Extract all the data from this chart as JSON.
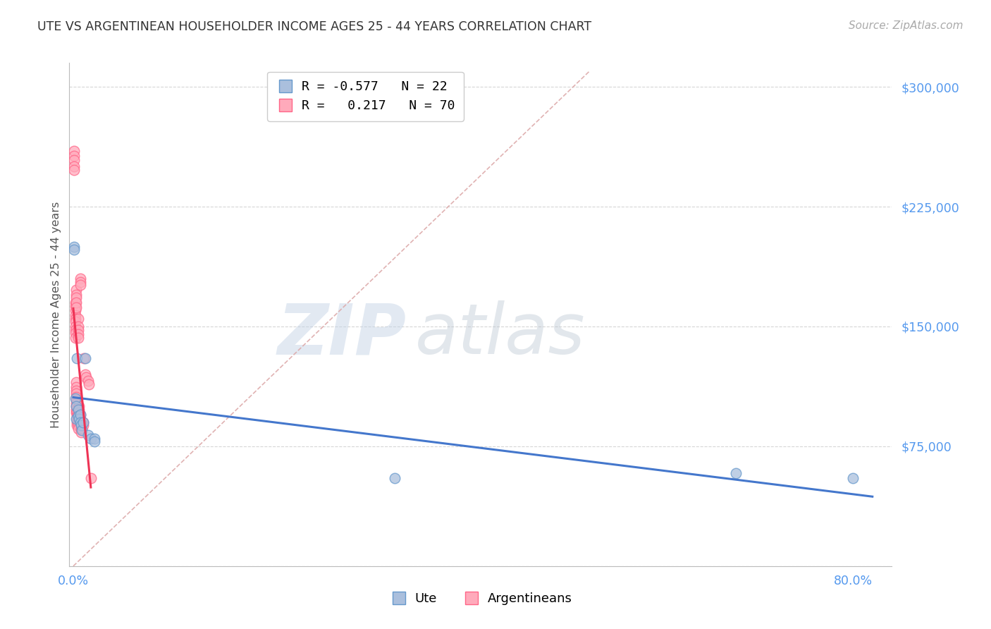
{
  "title": "UTE VS ARGENTINEAN HOUSEHOLDER INCOME AGES 25 - 44 YEARS CORRELATION CHART",
  "source": "Source: ZipAtlas.com",
  "ylabel": "Householder Income Ages 25 - 44 years",
  "yticks": [
    0,
    75000,
    150000,
    225000,
    300000
  ],
  "ytick_labels": [
    "",
    "$75,000",
    "$150,000",
    "$225,000",
    "$300,000"
  ],
  "ylim": [
    0,
    315000
  ],
  "xlim": [
    -0.004,
    0.84
  ],
  "xtick_vals": [
    0.0,
    0.1,
    0.2,
    0.3,
    0.4,
    0.5,
    0.6,
    0.7,
    0.8
  ],
  "xtick_labels": [
    "0.0%",
    "",
    "",
    "",
    "",
    "",
    "",
    "",
    "80.0%"
  ],
  "ute_R": -0.577,
  "ute_N": 22,
  "arg_R": 0.217,
  "arg_N": 70,
  "ute_scatter_color": "#aabfdd",
  "arg_scatter_color": "#ffaabb",
  "ute_edge_color": "#6699cc",
  "arg_edge_color": "#ff6688",
  "ute_line_color": "#4477cc",
  "arg_line_color": "#ee3355",
  "ref_line_color": "#ddaaaa",
  "grid_color": "#cccccc",
  "title_color": "#333333",
  "source_color": "#aaaaaa",
  "ylabel_color": "#555555",
  "ytick_color": "#5599ee",
  "xtick_color": "#5599ee",
  "legend_ute_label": "Ute",
  "legend_arg_label": "Argentineans",
  "ute_x": [
    0.001,
    0.001,
    0.002,
    0.003,
    0.003,
    0.004,
    0.005,
    0.005,
    0.006,
    0.007,
    0.007,
    0.008,
    0.009,
    0.01,
    0.012,
    0.015,
    0.018,
    0.022,
    0.022,
    0.33,
    0.68,
    0.8
  ],
  "ute_y": [
    200000,
    198000,
    105000,
    100000,
    92000,
    130000,
    98000,
    94000,
    92000,
    95000,
    90000,
    88000,
    85000,
    90000,
    130000,
    82000,
    80000,
    80000,
    78000,
    55000,
    58000,
    55000
  ],
  "arg_x": [
    0.001,
    0.001,
    0.001,
    0.001,
    0.001,
    0.002,
    0.002,
    0.002,
    0.002,
    0.002,
    0.002,
    0.002,
    0.002,
    0.002,
    0.002,
    0.003,
    0.003,
    0.003,
    0.003,
    0.003,
    0.003,
    0.003,
    0.003,
    0.003,
    0.003,
    0.003,
    0.003,
    0.003,
    0.003,
    0.003,
    0.004,
    0.004,
    0.004,
    0.004,
    0.004,
    0.005,
    0.005,
    0.005,
    0.005,
    0.005,
    0.005,
    0.005,
    0.005,
    0.005,
    0.005,
    0.006,
    0.006,
    0.006,
    0.006,
    0.006,
    0.007,
    0.007,
    0.007,
    0.007,
    0.007,
    0.008,
    0.008,
    0.008,
    0.008,
    0.009,
    0.009,
    0.009,
    0.01,
    0.01,
    0.011,
    0.012,
    0.013,
    0.015,
    0.016,
    0.018
  ],
  "arg_y": [
    260000,
    257000,
    254000,
    250000,
    248000,
    165000,
    163000,
    160000,
    157000,
    155000,
    153000,
    150000,
    148000,
    146000,
    143000,
    173000,
    170000,
    168000,
    165000,
    162000,
    115000,
    112000,
    110000,
    108000,
    106000,
    104000,
    102000,
    100000,
    98000,
    96000,
    96000,
    94000,
    92000,
    90000,
    88000,
    155000,
    150000,
    148000,
    145000,
    143000,
    95000,
    92000,
    90000,
    88000,
    86000,
    100000,
    98000,
    96000,
    94000,
    92000,
    180000,
    178000,
    176000,
    95000,
    92000,
    90000,
    88000,
    86000,
    84000,
    90000,
    88000,
    86000,
    90000,
    88000,
    130000,
    120000,
    118000,
    116000,
    114000,
    55000
  ]
}
